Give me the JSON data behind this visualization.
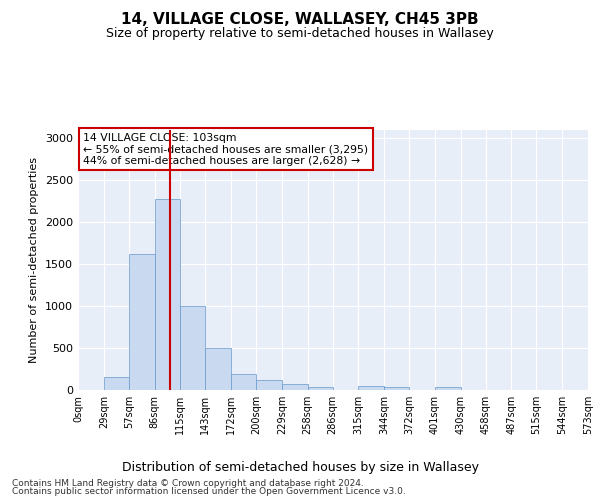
{
  "title1": "14, VILLAGE CLOSE, WALLASEY, CH45 3PB",
  "title2": "Size of property relative to semi-detached houses in Wallasey",
  "xlabel": "Distribution of semi-detached houses by size in Wallasey",
  "ylabel": "Number of semi-detached properties",
  "footer1": "Contains HM Land Registry data © Crown copyright and database right 2024.",
  "footer2": "Contains public sector information licensed under the Open Government Licence v3.0.",
  "annotation_line1": "14 VILLAGE CLOSE: 103sqm",
  "annotation_line2": "← 55% of semi-detached houses are smaller (3,295)",
  "annotation_line3": "44% of semi-detached houses are larger (2,628) →",
  "property_size": 103,
  "bin_edges": [
    0,
    29,
    57,
    86,
    115,
    143,
    172,
    200,
    229,
    258,
    286,
    315,
    344,
    372,
    401,
    430,
    458,
    487,
    515,
    544,
    573
  ],
  "bar_heights": [
    0,
    150,
    1625,
    2275,
    1000,
    500,
    185,
    115,
    75,
    40,
    5,
    50,
    40,
    0,
    40,
    0,
    0,
    0,
    0,
    0
  ],
  "bar_color": "#c8d9f0",
  "bar_edge_color": "#6699cc",
  "red_line_color": "#cc0000",
  "annotation_box_color": "#ffffff",
  "annotation_box_edge": "#cc0000",
  "background_color": "#e8eef8",
  "ylim": [
    0,
    3100
  ],
  "yticks": [
    0,
    500,
    1000,
    1500,
    2000,
    2500,
    3000
  ]
}
